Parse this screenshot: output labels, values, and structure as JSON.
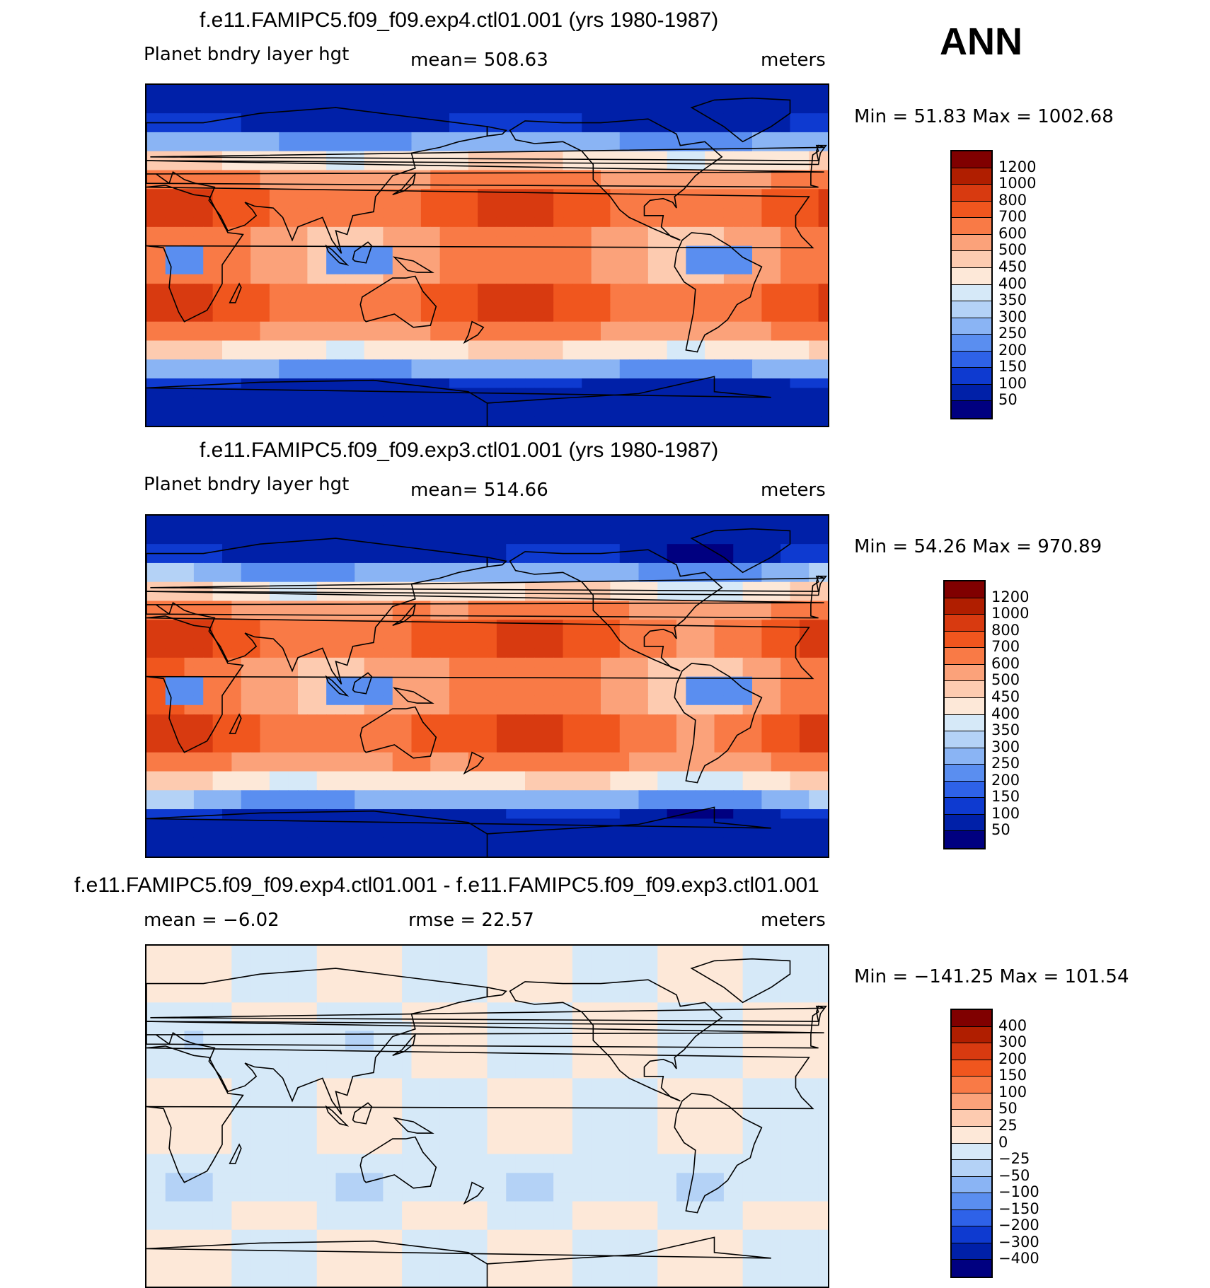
{
  "season": "ANN",
  "panels": [
    {
      "title": "f.e11.FAMIPC5.f09_f09.exp4.ctl01.001 (yrs 1980-1987)",
      "variable": "Planet bndry layer hgt",
      "stat_text": "mean=  508.63",
      "stat2_text": "",
      "units": "meters",
      "minmax": "Min =    51.83  Max  =  1002.68",
      "colorbar": "abs"
    },
    {
      "title": "f.e11.FAMIPC5.f09_f09.exp3.ctl01.001 (yrs 1980-1987)",
      "variable": "Planet bndry layer hgt",
      "stat_text": "mean=  514.66",
      "stat2_text": "",
      "units": "meters",
      "minmax": "Min =    54.26  Max  =  970.89",
      "colorbar": "abs"
    },
    {
      "title": "f.e11.FAMIPC5.f09_f09.exp4.ctl01.001 - f.e11.FAMIPC5.f09_f09.exp3.ctl01.001",
      "variable": "mean =   −6.02",
      "stat_text": "rmse =   22.57",
      "stat2_text": "",
      "units": "meters",
      "minmax": "Min = −141.25  Max  =  101.54",
      "colorbar": "diff"
    }
  ],
  "colorbars": {
    "abs": {
      "labels": [
        "1200",
        "1000",
        "800",
        "700",
        "600",
        "500",
        "450",
        "400",
        "350",
        "300",
        "250",
        "200",
        "150",
        "100",
        "50"
      ],
      "colors": [
        "#800000",
        "#b01e00",
        "#d83a10",
        "#f0561e",
        "#f97a46",
        "#fba27a",
        "#fdcbb0",
        "#fde8d8",
        "#d6e9f8",
        "#b4d2f6",
        "#8ab4f4",
        "#5a8ef0",
        "#2e62e8",
        "#0e3ad0",
        "#0020a8",
        "#000080"
      ]
    },
    "diff": {
      "labels": [
        "400",
        "300",
        "200",
        "150",
        "100",
        "50",
        "25",
        "0",
        "−25",
        "−50",
        "−100",
        "−150",
        "−200",
        "−300",
        "−400"
      ],
      "colors": [
        "#800000",
        "#b01e00",
        "#d83a10",
        "#f0561e",
        "#f97a46",
        "#fba27a",
        "#fdcbb0",
        "#fde8d8",
        "#d6e9f8",
        "#b4d2f6",
        "#8ab4f4",
        "#5a8ef0",
        "#2e62e8",
        "#0e3ad0",
        "#0020a8",
        "#000080"
      ]
    }
  },
  "chart_data": [
    {
      "type": "heatmap",
      "title": "f.e11.FAMIPC5.f09_f09.exp4.ctl01.001 (yrs 1980-1987)",
      "variable": "Planet bndry layer hgt",
      "units": "meters",
      "mean": 508.63,
      "min": 51.83,
      "max": 1002.68,
      "contour_levels": [
        50,
        100,
        150,
        200,
        250,
        300,
        350,
        400,
        450,
        500,
        600,
        700,
        800,
        1000,
        1200
      ]
    },
    {
      "type": "heatmap",
      "title": "f.e11.FAMIPC5.f09_f09.exp3.ctl01.001 (yrs 1980-1987)",
      "variable": "Planet bndry layer hgt",
      "units": "meters",
      "mean": 514.66,
      "min": 54.26,
      "max": 970.89,
      "contour_levels": [
        50,
        100,
        150,
        200,
        250,
        300,
        350,
        400,
        450,
        500,
        600,
        700,
        800,
        1000,
        1200
      ]
    },
    {
      "type": "heatmap",
      "title": "f.e11.FAMIPC5.f09_f09.exp4.ctl01.001 - f.e11.FAMIPC5.f09_f09.exp3.ctl01.001",
      "units": "meters",
      "mean": -6.02,
      "rmse": 22.57,
      "min": -141.25,
      "max": 101.54,
      "contour_levels": [
        -400,
        -300,
        -200,
        -150,
        -100,
        -50,
        -25,
        0,
        25,
        50,
        100,
        150,
        200,
        300,
        400
      ]
    }
  ]
}
